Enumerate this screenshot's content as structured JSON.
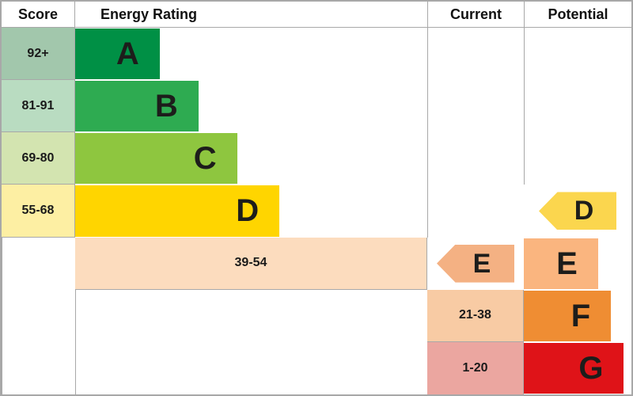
{
  "header": {
    "score": "Score",
    "energy_rating": "Energy Rating",
    "current": "Current",
    "potential": "Potential"
  },
  "bands": [
    {
      "letter": "A",
      "score": "92+",
      "color": "#009045",
      "tint": "#a2c7ac",
      "width": "24%"
    },
    {
      "letter": "B",
      "score": "81-91",
      "color": "#2eab51",
      "tint": "#b9dcc1",
      "width": "35%"
    },
    {
      "letter": "C",
      "score": "69-80",
      "color": "#8ec63f",
      "tint": "#d3e4b0",
      "width": "46%"
    },
    {
      "letter": "D",
      "score": "55-68",
      "color": "#ffd500",
      "tint": "#fdefa3",
      "width": "58%"
    },
    {
      "letter": "E",
      "score": "39-54",
      "color": "#fab57f",
      "tint": "#fcdcbe",
      "width": "69%"
    },
    {
      "letter": "F",
      "score": "21-38",
      "color": "#ef8d33",
      "tint": "#f8cba4",
      "width": "81%"
    },
    {
      "letter": "G",
      "score": "1-20",
      "color": "#df1318",
      "tint": "#eba6a0",
      "width": "93%"
    }
  ],
  "current": {
    "band": "E",
    "letter": "E",
    "color": "#f4b183"
  },
  "potential": {
    "band": "D",
    "letter": "D",
    "color": "#fbd64e"
  },
  "chart_data": {
    "type": "bar",
    "title": "Energy Rating",
    "categories": [
      "A",
      "B",
      "C",
      "D",
      "E",
      "F",
      "G"
    ],
    "score_ranges": [
      "92+",
      "81-91",
      "69-80",
      "55-68",
      "39-54",
      "21-38",
      "1-20"
    ],
    "bar_lengths_pct": [
      24,
      35,
      46,
      58,
      69,
      81,
      93
    ],
    "colors": [
      "#009045",
      "#2eab51",
      "#8ec63f",
      "#ffd500",
      "#fab57f",
      "#ef8d33",
      "#df1318"
    ],
    "current_rating": "E",
    "potential_rating": "D",
    "legend_position": "none",
    "grid": "off"
  }
}
